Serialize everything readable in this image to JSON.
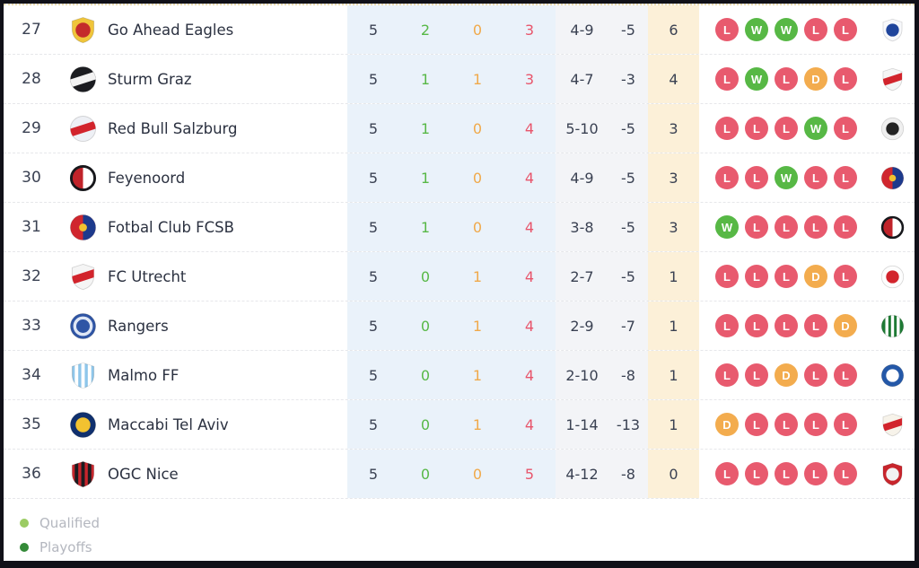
{
  "colors": {
    "frame_border": "#101018",
    "band_blue": "#eaf2fa",
    "band_grey": "#f3f4f7",
    "band_orange": "#fcf0d8",
    "row_divider": "#e6e7ea",
    "table_top_line": "#e7d8ad",
    "text_dark": "#3a4152",
    "team_name": "#2b3140",
    "win": "#58b847",
    "draw": "#f0a94a",
    "loss": "#e8556b",
    "form_w": "#57b845",
    "form_d": "#f3ac4e",
    "form_l": "#e85a6e"
  },
  "table": {
    "rows": [
      {
        "pos": "27",
        "team": "Go Ahead Eagles",
        "badge": {
          "name": "go-ahead-eagles-badge",
          "shape": "shield",
          "c1": "#f0c53a",
          "c2": "#c42b2b",
          "pattern": "dot"
        },
        "played": "5",
        "wins": "2",
        "draws": "0",
        "losses": "3",
        "goals": "4-9",
        "gd": "-5",
        "pts": "6",
        "form": [
          "L",
          "W",
          "W",
          "L",
          "L"
        ],
        "next": {
          "name": "olympique-lyonnais-badge",
          "shape": "shield",
          "c1": "#f7f8fb",
          "c2": "#20459c",
          "pattern": "dot"
        }
      },
      {
        "pos": "28",
        "team": "Sturm Graz",
        "badge": {
          "name": "sturm-graz-badge",
          "shape": "circle",
          "c1": "#1b1c20",
          "c2": "#f2f2f2",
          "pattern": "band"
        },
        "played": "5",
        "wins": "1",
        "draws": "1",
        "losses": "3",
        "goals": "4-7",
        "gd": "-3",
        "pts": "4",
        "form": [
          "L",
          "W",
          "L",
          "D",
          "L"
        ],
        "next": {
          "name": "red-star-belgrade-badge",
          "shape": "shield",
          "c1": "#f5f5f5",
          "c2": "#d2242c",
          "pattern": "band"
        }
      },
      {
        "pos": "29",
        "team": "Red Bull Salzburg",
        "badge": {
          "name": "red-bull-salzburg-badge",
          "shape": "circle",
          "c1": "#eef0f5",
          "c2": "#d2242c",
          "pattern": "band"
        },
        "played": "5",
        "wins": "1",
        "draws": "0",
        "losses": "4",
        "goals": "5-10",
        "gd": "-5",
        "pts": "3",
        "form": [
          "L",
          "L",
          "L",
          "W",
          "L"
        ],
        "next": {
          "name": "sc-freiburg-badge",
          "shape": "circle",
          "c1": "#efefef",
          "c2": "#232323",
          "pattern": "dot"
        }
      },
      {
        "pos": "30",
        "team": "Feyenoord",
        "badge": {
          "name": "feyenoord-badge",
          "shape": "circle",
          "c1": "#c0232a",
          "c2": "#ffffff",
          "pattern": "half",
          "ring": "#17181c"
        },
        "played": "5",
        "wins": "1",
        "draws": "0",
        "losses": "4",
        "goals": "4-9",
        "gd": "-5",
        "pts": "3",
        "form": [
          "L",
          "L",
          "W",
          "L",
          "L"
        ],
        "next": {
          "name": "fcsb-badge",
          "shape": "circle",
          "c1": "#d0262e",
          "c2": "#1d3a8c",
          "pattern": "half",
          "c3": "#f2c230"
        }
      },
      {
        "pos": "31",
        "team": "Fotbal Club FCSB",
        "badge": {
          "name": "fcsb-badge",
          "shape": "circle",
          "c1": "#d0262e",
          "c2": "#1d3a8c",
          "pattern": "half",
          "c3": "#f2c230"
        },
        "played": "5",
        "wins": "1",
        "draws": "0",
        "losses": "4",
        "goals": "3-8",
        "gd": "-5",
        "pts": "3",
        "form": [
          "W",
          "L",
          "L",
          "L",
          "L"
        ],
        "next": {
          "name": "feyenoord-badge",
          "shape": "circle",
          "c1": "#c0232a",
          "c2": "#ffffff",
          "pattern": "half",
          "ring": "#17181c"
        }
      },
      {
        "pos": "32",
        "team": "FC Utrecht",
        "badge": {
          "name": "fc-utrecht-badge",
          "shape": "shield",
          "c1": "#f5f5f5",
          "c2": "#d2242c",
          "pattern": "band"
        },
        "played": "5",
        "wins": "0",
        "draws": "1",
        "losses": "4",
        "goals": "2-7",
        "gd": "-5",
        "pts": "1",
        "form": [
          "L",
          "L",
          "L",
          "D",
          "L"
        ],
        "next": {
          "name": "nottingham-forest-badge",
          "shape": "circle",
          "c1": "#fdfdfd",
          "c2": "#d2242c",
          "pattern": "dot"
        }
      },
      {
        "pos": "33",
        "team": "Rangers",
        "badge": {
          "name": "rangers-badge",
          "shape": "circle",
          "c1": "#2f55a5",
          "c2": "#dfe7f5",
          "pattern": "ring"
        },
        "played": "5",
        "wins": "0",
        "draws": "1",
        "losses": "4",
        "goals": "2-9",
        "gd": "-7",
        "pts": "1",
        "form": [
          "L",
          "L",
          "L",
          "L",
          "D"
        ],
        "next": {
          "name": "ferencvaros-badge",
          "shape": "circle",
          "c1": "#1e7a34",
          "c2": "#ffffff",
          "pattern": "stripes"
        }
      },
      {
        "pos": "34",
        "team": "Malmo FF",
        "badge": {
          "name": "malmo-ff-badge",
          "shape": "shield",
          "c1": "#8ec6ea",
          "c2": "#ffffff",
          "pattern": "stripes"
        },
        "played": "5",
        "wins": "0",
        "draws": "1",
        "losses": "4",
        "goals": "2-10",
        "gd": "-8",
        "pts": "1",
        "form": [
          "L",
          "L",
          "D",
          "L",
          "L"
        ],
        "next": {
          "name": "fc-porto-badge",
          "shape": "circle",
          "c1": "#2458a8",
          "c2": "#ffffff",
          "pattern": "dot"
        }
      },
      {
        "pos": "35",
        "team": "Maccabi Tel Aviv",
        "badge": {
          "name": "maccabi-tel-aviv-badge",
          "shape": "circle",
          "c1": "#10306e",
          "c2": "#f2c230",
          "pattern": "dot"
        },
        "played": "5",
        "wins": "0",
        "draws": "1",
        "losses": "4",
        "goals": "1-14",
        "gd": "-13",
        "pts": "1",
        "form": [
          "D",
          "L",
          "L",
          "L",
          "L"
        ],
        "next": {
          "name": "vfb-stuttgart-badge",
          "shape": "shield",
          "c1": "#f7f3ea",
          "c2": "#d2242c",
          "pattern": "band"
        }
      },
      {
        "pos": "36",
        "team": "OGC Nice",
        "badge": {
          "name": "ogc-nice-badge",
          "shape": "shield",
          "c1": "#c8252c",
          "c2": "#1b1c20",
          "pattern": "stripes"
        },
        "played": "5",
        "wins": "0",
        "draws": "0",
        "losses": "5",
        "goals": "4-12",
        "gd": "-8",
        "pts": "0",
        "form": [
          "L",
          "L",
          "L",
          "L",
          "L"
        ],
        "next": {
          "name": "sc-braga-badge",
          "shape": "shield",
          "c1": "#c8252c",
          "c2": "#f2f2f2",
          "pattern": "dot"
        }
      }
    ]
  },
  "legend": {
    "items": [
      {
        "label": "Qualified",
        "color": "#9bcb63"
      },
      {
        "label": "Playoffs",
        "color": "#348a38"
      }
    ]
  }
}
